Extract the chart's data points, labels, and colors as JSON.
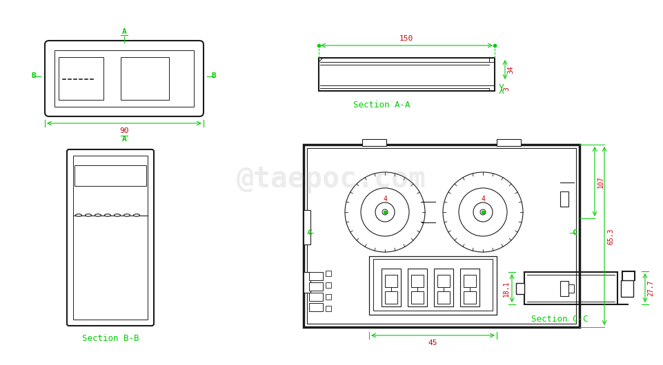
{
  "bg_color": "#ffffff",
  "line_color": "#1a1a1a",
  "green_color": "#00cc00",
  "red_color": "#cc0000",
  "watermark": "@taepoc.com",
  "dim_150": "150",
  "dim_90": "90",
  "dim_34": "34",
  "dim_3": "3",
  "dim_4a": "4",
  "dim_4b": "4",
  "dim_45": "45",
  "dim_107": "107",
  "dim_65": "65.3",
  "dim_27": "27.7",
  "dim_18": "18.1",
  "section_aa": "Section A-A",
  "section_bb": "Section B-B",
  "section_cc": "Section C-C"
}
